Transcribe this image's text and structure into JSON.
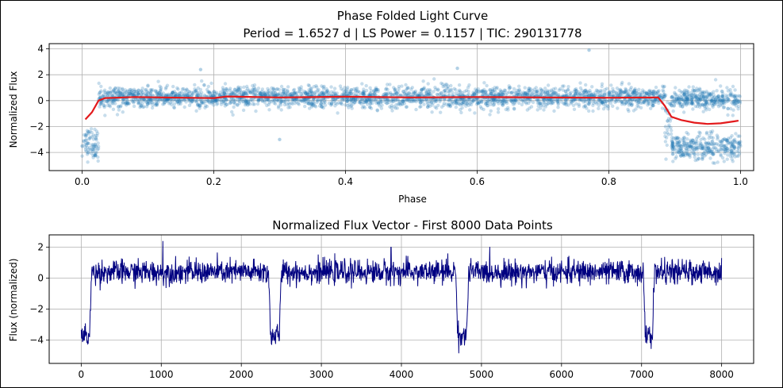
{
  "chart_data": [
    {
      "type": "scatter",
      "title": "Phase Folded Light Curve",
      "subtitle": "Period = 1.6527 d | LS Power = 0.1157 | TIC: 290131778",
      "xlabel": "Phase",
      "ylabel": "Normalized Flux",
      "xlim": [
        -0.05,
        1.02
      ],
      "ylim": [
        -5.4,
        4.4
      ],
      "xticks": [
        "0.0",
        "0.2",
        "0.4",
        "0.6",
        "0.8",
        "1.0"
      ],
      "xtick_values": [
        0.0,
        0.2,
        0.4,
        0.6,
        0.8,
        1.0
      ],
      "yticks": [
        "−4",
        "−2",
        "0",
        "2",
        "4"
      ],
      "ytick_values": [
        -4,
        -2,
        0,
        2,
        4
      ],
      "grid": true,
      "colors": {
        "points": "#1f77b4",
        "binned_line": "#e31a1c"
      },
      "series": [
        {
          "kind": "scatter",
          "segments": [
            {
              "phase_range": [
                0.0,
                0.025
              ],
              "flux_mean": -3.3,
              "flux_spread": 0.6
            },
            {
              "phase_range": [
                0.025,
                0.885
              ],
              "flux_mean": 0.25,
              "flux_spread": 0.4
            },
            {
              "phase_range": [
                0.885,
                0.895
              ],
              "flux_mean": -1.5,
              "flux_spread": 1.2
            },
            {
              "phase_range": [
                0.895,
                1.0
              ],
              "flux_mean": -3.6,
              "flux_spread": 0.5
            },
            {
              "phase_range": [
                0.895,
                1.0
              ],
              "flux_mean": 0.1,
              "flux_spread": 0.4
            }
          ],
          "outliers": [
            {
              "x": 0.77,
              "y": 3.9
            },
            {
              "x": 0.3,
              "y": -3.0
            },
            {
              "x": 0.18,
              "y": 2.4
            },
            {
              "x": 0.57,
              "y": 2.5
            }
          ]
        },
        {
          "kind": "line",
          "x": [
            0.005,
            0.015,
            0.025,
            0.035,
            0.05,
            0.08,
            0.12,
            0.2,
            0.22,
            0.3,
            0.4,
            0.5,
            0.6,
            0.7,
            0.8,
            0.875,
            0.885,
            0.895,
            0.91,
            0.93,
            0.95,
            0.97,
            0.99,
            0.997
          ],
          "y": [
            -1.45,
            -0.9,
            0.0,
            0.2,
            0.22,
            0.28,
            0.25,
            0.2,
            0.32,
            0.25,
            0.3,
            0.25,
            0.28,
            0.25,
            0.22,
            0.25,
            -0.4,
            -1.25,
            -1.5,
            -1.7,
            -1.8,
            -1.75,
            -1.6,
            -1.55
          ]
        }
      ]
    },
    {
      "type": "line",
      "title": "Normalized Flux Vector - First 8000 Data Points",
      "xlabel": "",
      "ylabel": "Flux (normalized)",
      "xlim": [
        -400,
        8400
      ],
      "ylim": [
        -5.5,
        2.8
      ],
      "xticks": [
        "0",
        "1000",
        "2000",
        "3000",
        "4000",
        "5000",
        "6000",
        "7000",
        "8000"
      ],
      "xtick_values": [
        0,
        1000,
        2000,
        3000,
        4000,
        5000,
        6000,
        7000,
        8000
      ],
      "yticks": [
        "−4",
        "−2",
        "0",
        "2"
      ],
      "ytick_values": [
        -4,
        -2,
        0,
        2
      ],
      "grid": true,
      "colors": {
        "line": "#000080"
      },
      "n_points": 8000,
      "baseline_flux": 0.4,
      "in_eclipse_flux": -3.7,
      "eclipses": [
        {
          "start": 0,
          "end": 130
        },
        {
          "start": 2340,
          "end": 2500
        },
        {
          "start": 4680,
          "end": 4840
        },
        {
          "start": 7020,
          "end": 7160
        }
      ],
      "spikes": [
        {
          "x": 1020,
          "y": 2.4
        },
        {
          "x": 3870,
          "y": 2.0
        },
        {
          "x": 4580,
          "y": 1.6
        },
        {
          "x": 8000,
          "y": 1.3
        }
      ]
    }
  ]
}
